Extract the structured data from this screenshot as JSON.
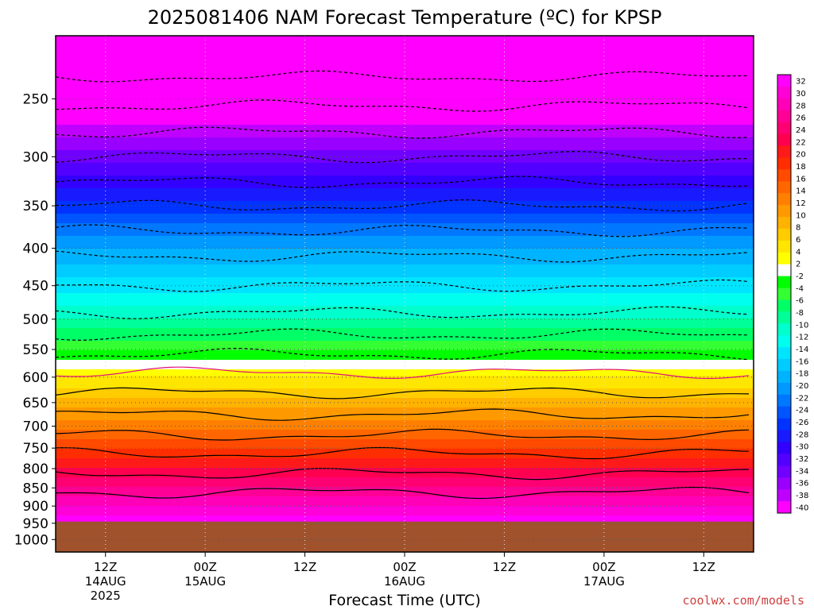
{
  "chart_data": {
    "type": "heatmap",
    "title": "2025081406 NAM Forecast Temperature (ºC) for KPSP",
    "xlabel": "Forecast Time (UTC)",
    "ylabel": "",
    "credit": "coolwx.com/models",
    "y_scale": "log",
    "y_axis_inverted": true,
    "ylim": [
      1040,
      205
    ],
    "y_ticks": [
      250,
      300,
      350,
      400,
      450,
      500,
      550,
      600,
      650,
      700,
      750,
      800,
      850,
      900,
      950,
      1000
    ],
    "x_range_hours": [
      6,
      90
    ],
    "x_ticks": [
      {
        "hour": 12,
        "label": "12Z",
        "date": "14AUG",
        "year": "2025"
      },
      {
        "hour": 24,
        "label": "00Z",
        "date": "15AUG",
        "year": ""
      },
      {
        "hour": 36,
        "label": "12Z",
        "date": "",
        "year": ""
      },
      {
        "hour": 48,
        "label": "00Z",
        "date": "16AUG",
        "year": ""
      },
      {
        "hour": 60,
        "label": "12Z",
        "date": "",
        "year": ""
      },
      {
        "hour": 72,
        "label": "00Z",
        "date": "17AUG",
        "year": ""
      },
      {
        "hour": 84,
        "label": "12Z",
        "date": "",
        "year": ""
      }
    ],
    "grid": true,
    "ground_level_hpa": 945,
    "ground_color": "#a0522d",
    "temperature_profile": [
      {
        "p": 200,
        "t": -52
      },
      {
        "p": 250,
        "t": -43
      },
      {
        "p": 300,
        "t": -34
      },
      {
        "p": 350,
        "t": -26
      },
      {
        "p": 400,
        "t": -19
      },
      {
        "p": 450,
        "t": -14
      },
      {
        "p": 500,
        "t": -9
      },
      {
        "p": 550,
        "t": -3
      },
      {
        "p": 575,
        "t": 0
      },
      {
        "p": 600,
        "t": 3
      },
      {
        "p": 650,
        "t": 8
      },
      {
        "p": 700,
        "t": 12
      },
      {
        "p": 750,
        "t": 17
      },
      {
        "p": 800,
        "t": 21
      },
      {
        "p": 850,
        "t": 25
      },
      {
        "p": 900,
        "t": 29
      },
      {
        "p": 950,
        "t": 33
      },
      {
        "p": 1000,
        "t": 36
      }
    ],
    "contour_levels": [
      -46,
      -42,
      -38,
      -34,
      -30,
      -26,
      -22,
      -18,
      -14,
      -10,
      -6,
      -2,
      2,
      6,
      10,
      14,
      18,
      22,
      26
    ],
    "colorbar": {
      "labels": [
        32,
        30,
        28,
        26,
        24,
        22,
        20,
        18,
        16,
        14,
        12,
        10,
        8,
        6,
        4,
        2,
        -2,
        -4,
        -6,
        -8,
        -10,
        -12,
        -14,
        -16,
        -18,
        -20,
        -22,
        -24,
        -26,
        -28,
        -30,
        -32,
        -34,
        -36,
        -38,
        -40
      ],
      "bands": [
        {
          "t": 32,
          "color": "#ff00ff"
        },
        {
          "t": 30,
          "color": "#ff00d8"
        },
        {
          "t": 28,
          "color": "#ff00b8"
        },
        {
          "t": 26,
          "color": "#ff0096"
        },
        {
          "t": 24,
          "color": "#ff0073"
        },
        {
          "t": 22,
          "color": "#ff0050"
        },
        {
          "t": 20,
          "color": "#ff1a1a"
        },
        {
          "t": 18,
          "color": "#ff2e00"
        },
        {
          "t": 16,
          "color": "#ff4a00"
        },
        {
          "t": 14,
          "color": "#ff6600"
        },
        {
          "t": 12,
          "color": "#ff8000"
        },
        {
          "t": 10,
          "color": "#ff9900"
        },
        {
          "t": 8,
          "color": "#ffb300"
        },
        {
          "t": 6,
          "color": "#ffcc00"
        },
        {
          "t": 4,
          "color": "#ffe600"
        },
        {
          "t": 2,
          "color": "#ffff00"
        },
        {
          "t": 0,
          "color": "#ffffff"
        },
        {
          "t": -2,
          "color": "#00ff00"
        },
        {
          "t": -4,
          "color": "#33ff33"
        },
        {
          "t": -6,
          "color": "#00ff66"
        },
        {
          "t": -8,
          "color": "#00ff99"
        },
        {
          "t": -10,
          "color": "#00ffcc"
        },
        {
          "t": -12,
          "color": "#00ffee"
        },
        {
          "t": -14,
          "color": "#00e5ff"
        },
        {
          "t": -16,
          "color": "#00ccff"
        },
        {
          "t": -18,
          "color": "#00b3ff"
        },
        {
          "t": -20,
          "color": "#0099ff"
        },
        {
          "t": -22,
          "color": "#0077ff"
        },
        {
          "t": -24,
          "color": "#0055ff"
        },
        {
          "t": -26,
          "color": "#0033ff"
        },
        {
          "t": -28,
          "color": "#1a1aff"
        },
        {
          "t": -30,
          "color": "#3300ff"
        },
        {
          "t": -32,
          "color": "#5200ff"
        },
        {
          "t": -34,
          "color": "#7000ff"
        },
        {
          "t": -36,
          "color": "#9900ff"
        },
        {
          "t": -38,
          "color": "#c000ff"
        },
        {
          "t": -40,
          "color": "#ff00ff"
        }
      ]
    }
  }
}
